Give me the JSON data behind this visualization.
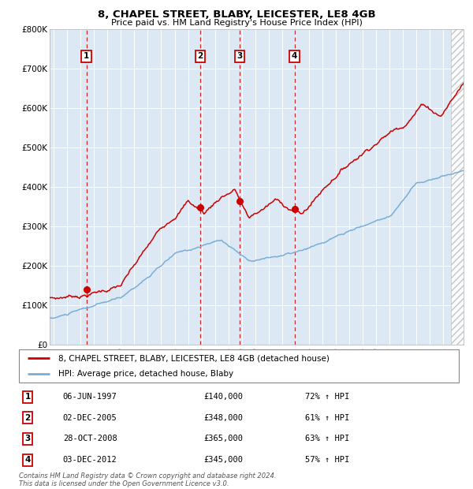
{
  "title": "8, CHAPEL STREET, BLABY, LEICESTER, LE8 4GB",
  "subtitle": "Price paid vs. HM Land Registry's House Price Index (HPI)",
  "sale_label": "8, CHAPEL STREET, BLABY, LEICESTER, LE8 4GB (detached house)",
  "hpi_label": "HPI: Average price, detached house, Blaby",
  "sale_color": "#cc0000",
  "hpi_color": "#7aaed6",
  "background_color": "#dce9f5",
  "plot_bg": "#ffffff",
  "purchases": [
    {
      "num": 1,
      "date_x": 1997.43,
      "price": 140000,
      "label": "06-JUN-1997",
      "pct": "72%"
    },
    {
      "num": 2,
      "date_x": 2005.92,
      "price": 348000,
      "label": "02-DEC-2005",
      "pct": "61%"
    },
    {
      "num": 3,
      "date_x": 2008.83,
      "price": 365000,
      "label": "28-OCT-2008",
      "pct": "63%"
    },
    {
      "num": 4,
      "date_x": 2012.92,
      "price": 345000,
      "label": "03-DEC-2012",
      "pct": "57%"
    }
  ],
  "ylim": [
    0,
    800000
  ],
  "xlim": [
    1994.7,
    2025.5
  ],
  "yticks": [
    0,
    100000,
    200000,
    300000,
    400000,
    500000,
    600000,
    700000,
    800000
  ],
  "ytick_labels": [
    "£0",
    "£100K",
    "£200K",
    "£300K",
    "£400K",
    "£500K",
    "£600K",
    "£700K",
    "£800K"
  ],
  "xticks": [
    1995,
    1996,
    1997,
    1998,
    1999,
    2000,
    2001,
    2002,
    2003,
    2004,
    2005,
    2006,
    2007,
    2008,
    2009,
    2010,
    2011,
    2012,
    2013,
    2014,
    2015,
    2016,
    2017,
    2018,
    2019,
    2020,
    2021,
    2022,
    2023,
    2024,
    2025
  ],
  "footer": "Contains HM Land Registry data © Crown copyright and database right 2024.\nThis data is licensed under the Open Government Licence v3.0.",
  "hatched_region_start": 2024.58
}
